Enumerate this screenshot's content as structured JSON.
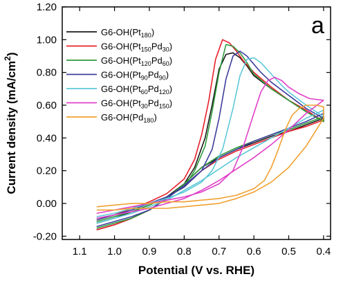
{
  "chart_data": {
    "type": "line",
    "panel_label": "a",
    "xlabel": "Potential (V vs. RHE)",
    "ylabel_main": "Current density (mA/cm",
    "ylabel_sup": "2",
    "ylabel_close": ")",
    "xlim": [
      1.15,
      0.38
    ],
    "ylim": [
      -0.22,
      1.2
    ],
    "x_ticks": [
      1.1,
      1.0,
      0.9,
      0.8,
      0.7,
      0.6,
      0.5,
      0.4
    ],
    "x_tick_labels": [
      "1.1",
      "1.0",
      "0.9",
      "0.8",
      "0.7",
      "0.6",
      "0.5",
      "0.4"
    ],
    "y_ticks": [
      -0.2,
      0.0,
      0.2,
      0.4,
      0.6,
      0.8,
      1.0,
      1.2
    ],
    "y_tick_labels": [
      "-0.20",
      "0.00",
      "0.20",
      "0.40",
      "0.60",
      "0.80",
      "1.00",
      "1.20"
    ],
    "legend_position": "top-left",
    "series": [
      {
        "legend_main": "G6-OH(Pt",
        "sub1": "180",
        "mid": "",
        "sub2": "",
        "close": ")",
        "color": "#1a1a1a",
        "x": [
          1.05,
          1.0,
          0.95,
          0.9,
          0.85,
          0.8,
          0.77,
          0.74,
          0.72,
          0.7,
          0.68,
          0.66,
          0.64,
          0.62,
          0.6,
          0.55,
          0.5,
          0.45,
          0.4,
          0.4,
          0.45,
          0.5,
          0.55,
          0.6,
          0.65,
          0.7,
          0.75,
          0.8,
          0.85,
          0.9,
          0.95,
          1.0,
          1.05
        ],
        "y": [
          -0.12,
          -0.09,
          -0.05,
          -0.01,
          0.04,
          0.12,
          0.22,
          0.4,
          0.6,
          0.82,
          0.91,
          0.92,
          0.89,
          0.84,
          0.78,
          0.7,
          0.63,
          0.56,
          0.5,
          0.52,
          0.48,
          0.44,
          0.41,
          0.37,
          0.33,
          0.28,
          0.22,
          0.12,
          0.03,
          -0.04,
          -0.09,
          -0.13,
          -0.16
        ]
      },
      {
        "legend_main": "G6-OH(Pt",
        "sub1": "150",
        "mid": "Pd",
        "sub2": "30",
        "close": ")",
        "color": "#e8202a",
        "x": [
          1.05,
          1.0,
          0.95,
          0.9,
          0.85,
          0.8,
          0.77,
          0.75,
          0.73,
          0.71,
          0.69,
          0.67,
          0.65,
          0.63,
          0.6,
          0.55,
          0.5,
          0.45,
          0.4,
          0.4,
          0.45,
          0.5,
          0.55,
          0.6,
          0.65,
          0.7,
          0.75,
          0.8,
          0.85,
          0.9,
          0.95,
          1.0,
          1.05
        ],
        "y": [
          -0.1,
          -0.07,
          -0.03,
          0.01,
          0.06,
          0.15,
          0.27,
          0.42,
          0.62,
          0.88,
          1.0,
          0.98,
          0.93,
          0.87,
          0.8,
          0.71,
          0.63,
          0.57,
          0.5,
          0.51,
          0.47,
          0.44,
          0.4,
          0.36,
          0.32,
          0.27,
          0.2,
          0.11,
          0.03,
          -0.04,
          -0.09,
          -0.13,
          -0.16
        ]
      },
      {
        "legend_main": "G6-OH(Pt",
        "sub1": "120",
        "mid": "Pd",
        "sub2": "60",
        "close": ")",
        "color": "#2e9a3a",
        "x": [
          1.05,
          1.0,
          0.95,
          0.9,
          0.85,
          0.8,
          0.77,
          0.74,
          0.72,
          0.7,
          0.68,
          0.66,
          0.64,
          0.62,
          0.6,
          0.55,
          0.5,
          0.45,
          0.4,
          0.4,
          0.45,
          0.5,
          0.55,
          0.6,
          0.65,
          0.7,
          0.75,
          0.8,
          0.85,
          0.9,
          0.95,
          1.0,
          1.05
        ],
        "y": [
          -0.11,
          -0.08,
          -0.05,
          -0.01,
          0.04,
          0.1,
          0.2,
          0.35,
          0.56,
          0.8,
          0.97,
          0.96,
          0.92,
          0.86,
          0.79,
          0.7,
          0.63,
          0.56,
          0.5,
          0.53,
          0.49,
          0.45,
          0.42,
          0.38,
          0.34,
          0.29,
          0.22,
          0.12,
          0.03,
          -0.04,
          -0.09,
          -0.12,
          -0.15
        ]
      },
      {
        "legend_main": "G6-OH(Pt",
        "sub1": "90",
        "mid": "Pd",
        "sub2": "90",
        "close": ")",
        "color": "#3d3d9e",
        "x": [
          1.05,
          1.0,
          0.95,
          0.9,
          0.85,
          0.8,
          0.75,
          0.72,
          0.7,
          0.68,
          0.66,
          0.64,
          0.62,
          0.6,
          0.58,
          0.55,
          0.5,
          0.45,
          0.4,
          0.4,
          0.45,
          0.5,
          0.55,
          0.6,
          0.65,
          0.7,
          0.75,
          0.8,
          0.85,
          0.9,
          0.95,
          1.0,
          1.05
        ],
        "y": [
          -0.1,
          -0.07,
          -0.04,
          0.0,
          0.04,
          0.1,
          0.2,
          0.33,
          0.52,
          0.76,
          0.9,
          0.93,
          0.9,
          0.85,
          0.8,
          0.74,
          0.66,
          0.58,
          0.52,
          0.55,
          0.5,
          0.46,
          0.42,
          0.38,
          0.33,
          0.28,
          0.2,
          0.11,
          0.03,
          -0.04,
          -0.08,
          -0.11,
          -0.14
        ]
      },
      {
        "legend_main": "G6-OH(Pt",
        "sub1": "60",
        "mid": "Pd",
        "sub2": "120",
        "close": ")",
        "color": "#5cc8d8",
        "x": [
          1.05,
          1.0,
          0.95,
          0.9,
          0.85,
          0.8,
          0.75,
          0.72,
          0.69,
          0.66,
          0.64,
          0.62,
          0.6,
          0.58,
          0.55,
          0.52,
          0.5,
          0.45,
          0.4,
          0.4,
          0.45,
          0.5,
          0.55,
          0.6,
          0.65,
          0.7,
          0.75,
          0.8,
          0.85,
          0.9,
          0.95,
          1.0,
          1.05
        ],
        "y": [
          -0.08,
          -0.06,
          -0.03,
          0.0,
          0.03,
          0.07,
          0.13,
          0.2,
          0.33,
          0.58,
          0.78,
          0.88,
          0.89,
          0.86,
          0.79,
          0.72,
          0.68,
          0.6,
          0.53,
          0.57,
          0.52,
          0.46,
          0.4,
          0.34,
          0.28,
          0.21,
          0.14,
          0.08,
          0.02,
          -0.02,
          -0.06,
          -0.09,
          -0.12
        ]
      },
      {
        "legend_main": "G6-OH(Pt",
        "sub1": "30",
        "mid": "Pd",
        "sub2": "150",
        "close": ")",
        "color": "#e040c8",
        "x": [
          1.05,
          1.0,
          0.95,
          0.9,
          0.85,
          0.8,
          0.75,
          0.7,
          0.66,
          0.63,
          0.6,
          0.58,
          0.56,
          0.54,
          0.52,
          0.5,
          0.47,
          0.44,
          0.4,
          0.4,
          0.45,
          0.5,
          0.55,
          0.6,
          0.65,
          0.7,
          0.75,
          0.8,
          0.85,
          0.9,
          0.95,
          1.0,
          1.05
        ],
        "y": [
          -0.06,
          -0.04,
          -0.02,
          0.0,
          0.02,
          0.04,
          0.07,
          0.12,
          0.2,
          0.35,
          0.55,
          0.68,
          0.75,
          0.77,
          0.75,
          0.71,
          0.67,
          0.64,
          0.63,
          0.63,
          0.55,
          0.45,
          0.36,
          0.28,
          0.21,
          0.14,
          0.08,
          0.03,
          0.0,
          -0.03,
          -0.05,
          -0.07,
          -0.09
        ]
      },
      {
        "legend_main": "G6-OH(Pd",
        "sub1": "180",
        "mid": "",
        "sub2": "",
        "close": ")",
        "color": "#f0a030",
        "x": [
          1.05,
          1.0,
          0.95,
          0.9,
          0.85,
          0.8,
          0.75,
          0.7,
          0.65,
          0.6,
          0.57,
          0.55,
          0.53,
          0.51,
          0.49,
          0.47,
          0.45,
          0.42,
          0.4,
          0.4,
          0.45,
          0.5,
          0.55,
          0.6,
          0.65,
          0.7,
          0.75,
          0.8,
          0.85,
          0.9,
          0.95,
          1.0,
          1.05
        ],
        "y": [
          -0.02,
          -0.01,
          0.0,
          0.0,
          0.01,
          0.01,
          0.02,
          0.03,
          0.05,
          0.09,
          0.14,
          0.22,
          0.33,
          0.45,
          0.54,
          0.58,
          0.6,
          0.6,
          0.59,
          0.52,
          0.35,
          0.22,
          0.13,
          0.07,
          0.03,
          0.0,
          -0.01,
          -0.02,
          -0.03,
          -0.03,
          -0.03,
          -0.04,
          -0.04
        ]
      }
    ]
  }
}
